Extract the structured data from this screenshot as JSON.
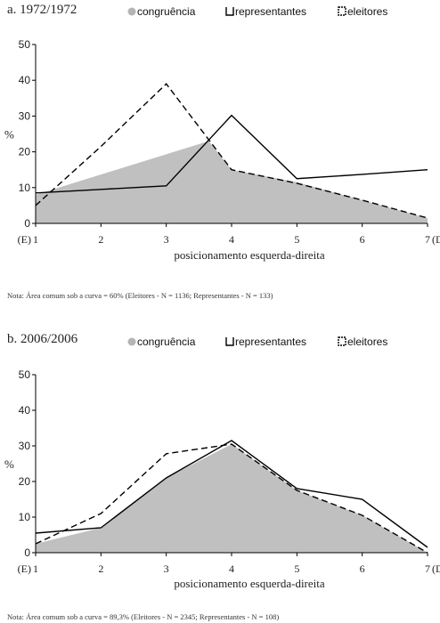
{
  "chart_data": [
    {
      "type": "area",
      "title": "a. 1972/1972",
      "xlabel": "posicionamento esquerda-direita",
      "ylabel": "%",
      "categories": [
        "1",
        "2",
        "3",
        "4",
        "5",
        "6",
        "7"
      ],
      "x_end_labels": {
        "left": "(E)",
        "right": "(D)"
      },
      "ylim": [
        0,
        50
      ],
      "yticks": [
        0,
        10,
        20,
        30,
        40,
        50
      ],
      "grid": false,
      "legend_position": "top",
      "series": [
        {
          "name": "congruência",
          "style": "filled-area",
          "color": "#c0c0c0",
          "x": [
            1,
            3.65,
            4,
            5,
            6,
            7
          ],
          "values": [
            8,
            23,
            15,
            11.5,
            6.5,
            1.5
          ]
        },
        {
          "name": "representantes",
          "style": "solid-line",
          "color": "#000000",
          "x": [
            1,
            2,
            3,
            4,
            5,
            6,
            7
          ],
          "values": [
            8.5,
            9.5,
            10.5,
            30.2,
            12.5,
            13.7,
            15
          ]
        },
        {
          "name": "eleitores",
          "style": "dashed-line",
          "color": "#000000",
          "x": [
            1,
            2,
            3,
            4,
            5,
            6,
            7
          ],
          "values": [
            5,
            21.5,
            39,
            15,
            11.2,
            6.5,
            1.5
          ]
        }
      ],
      "note": "Nota: Área comum sob a curva = 60% (Eleitores - N = 1136; Representantes - N = 133)"
    },
    {
      "type": "area",
      "title": "b. 2006/2006",
      "xlabel": "posicionamento esquerda-direita",
      "ylabel": "%",
      "categories": [
        "1",
        "2",
        "3",
        "4",
        "5",
        "6",
        "7"
      ],
      "x_end_labels": {
        "left": "(E)",
        "right": "(D)"
      },
      "ylim": [
        0,
        50
      ],
      "yticks": [
        0,
        10,
        20,
        30,
        40,
        50
      ],
      "grid": false,
      "legend_position": "top",
      "series": [
        {
          "name": "congruência",
          "style": "filled-area",
          "color": "#c0c0c0",
          "x": [
            1,
            2,
            3,
            4,
            5,
            6,
            7
          ],
          "values": [
            2.5,
            7,
            21,
            30.5,
            17.5,
            10.5,
            0
          ]
        },
        {
          "name": "representantes",
          "style": "solid-line",
          "color": "#000000",
          "x": [
            1,
            2,
            3,
            4,
            5,
            6,
            7
          ],
          "values": [
            5.5,
            7,
            21,
            31.5,
            18,
            15,
            1.5
          ]
        },
        {
          "name": "eleitores",
          "style": "dashed-line",
          "color": "#000000",
          "x": [
            1,
            2,
            3,
            4,
            5,
            6,
            7
          ],
          "values": [
            2.5,
            11,
            27.8,
            30.5,
            17.5,
            10.5,
            0
          ]
        }
      ],
      "note": "Nota: Área comum sob a curva = 89,3% (Eleitores - N = 2345; Representantes - N = 108)"
    }
  ]
}
